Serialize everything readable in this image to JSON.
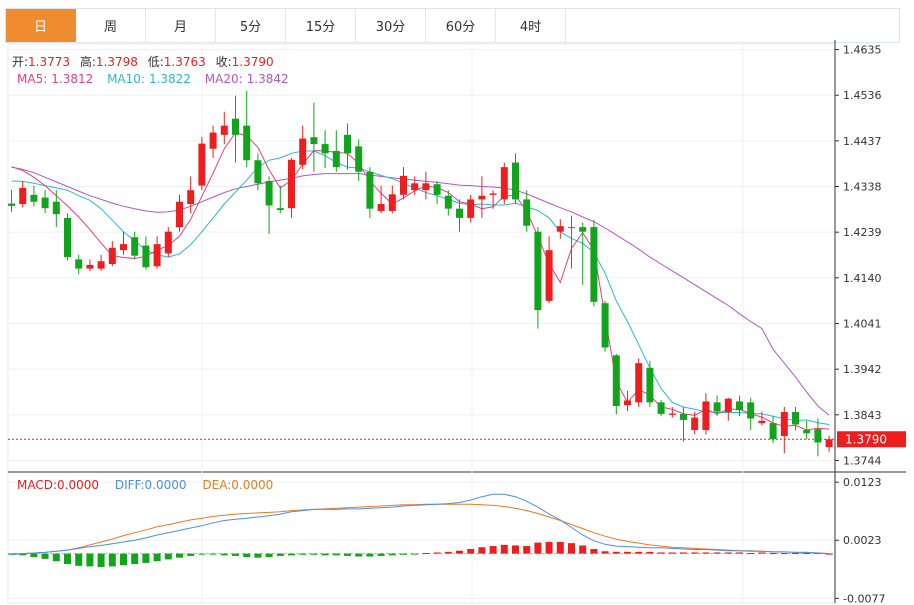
{
  "tabs": [
    "日",
    "周",
    "月",
    "5分",
    "15分",
    "30分",
    "60分",
    "4时"
  ],
  "active_tab": 0,
  "ohlc_bar": {
    "open_label": "开:",
    "open": "1.3773",
    "high_label": "高:",
    "high": "1.3798",
    "low_label": "低:",
    "low": "1.3763",
    "close_label": "收:",
    "close": "1.3790"
  },
  "ma_bar": {
    "ma5_label": "MA5:",
    "ma5": "1.3812",
    "ma10_label": "MA10:",
    "ma10": "1.3822",
    "ma20_label": "MA20:",
    "ma20": "1.3842"
  },
  "macd_bar": {
    "macd_label": "MACD:",
    "macd": "0.0000",
    "diff_label": "DIFF:",
    "diff": "0.0000",
    "dea_label": "DEA:",
    "dea": "0.0000"
  },
  "current_price_tag": "1.3790",
  "colors": {
    "up": "#ee1e1e",
    "down": "#12a51b",
    "ma5": "#e8407a",
    "ma10": "#2bb9d1",
    "ma20": "#b457c5",
    "diff": "#4a90e2",
    "dea": "#ee7a20",
    "tab_active": "#f08c30"
  },
  "chart_data": {
    "type": "candlestick",
    "price_axis_ticks": [
      1.4635,
      1.4536,
      1.4437,
      1.4338,
      1.4239,
      1.414,
      1.4041,
      1.3942,
      1.3843,
      1.3744
    ],
    "price_ylim": [
      1.3719,
      1.4647
    ],
    "macd_axis_ticks": [
      "0.0123",
      "0.0023",
      "-0.0077"
    ],
    "macd_ylim": [
      -0.0085,
      0.0137
    ],
    "candles": [
      [
        1.4301,
        1.4296,
        1.4331,
        1.4283
      ],
      [
        1.43,
        1.4335,
        1.435,
        1.4293
      ],
      [
        1.432,
        1.4305,
        1.434,
        1.4295
      ],
      [
        1.4314,
        1.4291,
        1.433,
        1.428
      ],
      [
        1.4305,
        1.4278,
        1.433,
        1.425
      ],
      [
        1.427,
        1.4185,
        1.428,
        1.4178
      ],
      [
        1.418,
        1.416,
        1.419,
        1.4148
      ],
      [
        1.416,
        1.4168,
        1.418,
        1.4155
      ],
      [
        1.416,
        1.4176,
        1.419,
        1.4155
      ],
      [
        1.417,
        1.4205,
        1.422,
        1.4165
      ],
      [
        1.42,
        1.4213,
        1.424,
        1.419
      ],
      [
        1.4228,
        1.4188,
        1.424,
        1.418
      ],
      [
        1.421,
        1.4163,
        1.423,
        1.4158
      ],
      [
        1.4165,
        1.4213,
        1.423,
        1.416
      ],
      [
        1.4193,
        1.424,
        1.425,
        1.4185
      ],
      [
        1.425,
        1.4305,
        1.432,
        1.424
      ],
      [
        1.43,
        1.433,
        1.436,
        1.428
      ],
      [
        1.434,
        1.4431,
        1.4445,
        1.433
      ],
      [
        1.442,
        1.4455,
        1.447,
        1.44
      ],
      [
        1.445,
        1.447,
        1.45,
        1.443
      ],
      [
        1.4485,
        1.445,
        1.4535,
        1.439
      ],
      [
        1.447,
        1.4395,
        1.4545,
        1.438
      ],
      [
        1.4395,
        1.4345,
        1.441,
        1.433
      ],
      [
        1.435,
        1.4297,
        1.436,
        1.4235
      ],
      [
        1.4291,
        1.4287,
        1.434,
        1.428
      ],
      [
        1.4291,
        1.4396,
        1.44,
        1.427
      ],
      [
        1.4385,
        1.4442,
        1.447,
        1.4375
      ],
      [
        1.4445,
        1.443,
        1.452,
        1.437
      ],
      [
        1.443,
        1.441,
        1.446,
        1.4378
      ],
      [
        1.4415,
        1.438,
        1.446,
        1.437
      ],
      [
        1.445,
        1.441,
        1.4475,
        1.4375
      ],
      [
        1.4425,
        1.437,
        1.444,
        1.435
      ],
      [
        1.437,
        1.429,
        1.438,
        1.427
      ],
      [
        1.4285,
        1.43,
        1.434,
        1.428
      ],
      [
        1.4285,
        1.4321,
        1.434,
        1.428
      ],
      [
        1.432,
        1.4361,
        1.438,
        1.431
      ],
      [
        1.433,
        1.4345,
        1.436,
        1.432
      ],
      [
        1.433,
        1.4345,
        1.437,
        1.431
      ],
      [
        1.4343,
        1.432,
        1.435,
        1.43
      ],
      [
        1.4318,
        1.429,
        1.433,
        1.4275
      ],
      [
        1.429,
        1.427,
        1.431,
        1.424
      ],
      [
        1.427,
        1.431,
        1.432,
        1.426
      ],
      [
        1.431,
        1.4318,
        1.436,
        1.427
      ],
      [
        1.432,
        1.4323,
        1.433,
        1.429
      ],
      [
        1.431,
        1.438,
        1.439,
        1.43
      ],
      [
        1.439,
        1.431,
        1.441,
        1.43
      ],
      [
        1.431,
        1.4253,
        1.433,
        1.424
      ],
      [
        1.424,
        1.407,
        1.425,
        1.403
      ],
      [
        1.409,
        1.42,
        1.423,
        1.4085
      ],
      [
        1.424,
        1.4252,
        1.4267,
        1.4225
      ],
      [
        1.425,
        1.4249,
        1.4275,
        1.416
      ],
      [
        1.425,
        1.424,
        1.426,
        1.4125
      ],
      [
        1.425,
        1.4088,
        1.4265,
        1.4078
      ],
      [
        1.4085,
        1.3989,
        1.409,
        1.398
      ],
      [
        1.3972,
        1.3862,
        1.3975,
        1.3844
      ],
      [
        1.3864,
        1.3874,
        1.3895,
        1.3851
      ],
      [
        1.387,
        1.3955,
        1.3965,
        1.386
      ],
      [
        1.3945,
        1.387,
        1.396,
        1.386
      ],
      [
        1.387,
        1.3845,
        1.3875,
        1.384
      ],
      [
        1.3843,
        1.3846,
        1.386,
        1.3837
      ],
      [
        1.3845,
        1.3832,
        1.386,
        1.3785
      ],
      [
        1.381,
        1.3837,
        1.385,
        1.3801
      ],
      [
        1.381,
        1.3872,
        1.389,
        1.38
      ],
      [
        1.387,
        1.385,
        1.3885,
        1.384
      ],
      [
        1.3849,
        1.3878,
        1.388,
        1.383
      ],
      [
        1.3872,
        1.3853,
        1.3885,
        1.384
      ],
      [
        1.387,
        1.3835,
        1.388,
        1.381
      ],
      [
        1.3825,
        1.383,
        1.385,
        1.382
      ],
      [
        1.3825,
        1.379,
        1.384,
        1.3782
      ],
      [
        1.3797,
        1.3849,
        1.386,
        1.376
      ],
      [
        1.3849,
        1.3822,
        1.386,
        1.3809
      ],
      [
        1.381,
        1.3803,
        1.383,
        1.379
      ],
      [
        1.3812,
        1.3783,
        1.3835,
        1.3753
      ],
      [
        1.3773,
        1.379,
        1.3798,
        1.3763
      ]
    ],
    "ma5": [
      1.4381,
      1.4373,
      1.4358,
      1.434,
      1.4318,
      1.4296,
      1.4272,
      1.4245,
      1.4215,
      1.4188,
      1.4184,
      1.4182,
      1.4187,
      1.42,
      1.421,
      1.423,
      1.4267,
      1.4317,
      1.4367,
      1.442,
      1.4455,
      1.4448,
      1.4423,
      1.4374,
      1.4335,
      1.4352,
      1.4387,
      1.4416,
      1.4415,
      1.4412,
      1.441,
      1.4388,
      1.435,
      1.4323,
      1.43,
      1.4313,
      1.4329,
      1.4339,
      1.4336,
      1.4325,
      1.4305,
      1.43,
      1.429,
      1.4294,
      1.4318,
      1.4318,
      1.4285,
      1.423,
      1.417,
      1.413,
      1.4204,
      1.4238,
      1.42,
      1.4055,
      1.3915,
      1.387,
      1.3898,
      1.3885,
      1.386,
      1.3855,
      1.3845,
      1.3842,
      1.3855,
      1.3845,
      1.3855,
      1.3855,
      1.3845,
      1.3838,
      1.3825,
      1.3818,
      1.382,
      1.381,
      1.3814,
      1.3812
    ],
    "ma10": [
      1.435,
      1.4349,
      1.4345,
      1.434,
      1.4335,
      1.433,
      1.4318,
      1.4308,
      1.429,
      1.4265,
      1.424,
      1.422,
      1.42,
      1.419,
      1.4185,
      1.4192,
      1.4212,
      1.424,
      1.427,
      1.43,
      1.4326,
      1.4352,
      1.438,
      1.4395,
      1.44,
      1.441,
      1.4415,
      1.4415,
      1.4405,
      1.439,
      1.438,
      1.4378,
      1.437,
      1.4362,
      1.4355,
      1.4345,
      1.4335,
      1.4325,
      1.4318,
      1.431,
      1.4302,
      1.4298,
      1.43,
      1.4298,
      1.4298,
      1.4302,
      1.4294,
      1.4286,
      1.427,
      1.424,
      1.4225,
      1.4215,
      1.4195,
      1.415,
      1.409,
      1.4045,
      1.3995,
      1.3945,
      1.39,
      1.387,
      1.386,
      1.3855,
      1.385,
      1.3848,
      1.3848,
      1.3848,
      1.3846,
      1.3845,
      1.384,
      1.3835,
      1.383,
      1.3832,
      1.3826,
      1.3822
    ],
    "ma20": [
      1.438,
      1.4375,
      1.4368,
      1.4358,
      1.4348,
      1.4338,
      1.4328,
      1.4318,
      1.431,
      1.4302,
      1.4295,
      1.429,
      1.4285,
      1.4282,
      1.4283,
      1.4287,
      1.4295,
      1.4305,
      1.4315,
      1.4325,
      1.4333,
      1.4338,
      1.4343,
      1.4348,
      1.4352,
      1.4356,
      1.4361,
      1.4364,
      1.4366,
      1.4366,
      1.4366,
      1.4366,
      1.4363,
      1.436,
      1.4357,
      1.4354,
      1.4352,
      1.4349,
      1.4347,
      1.4344,
      1.4341,
      1.434,
      1.4338,
      1.4337,
      1.4335,
      1.433,
      1.4322,
      1.4312,
      1.4302,
      1.4292,
      1.4283,
      1.4272,
      1.4262,
      1.4248,
      1.4233,
      1.4218,
      1.4202,
      1.4185,
      1.417,
      1.4155,
      1.414,
      1.4125,
      1.411,
      1.4095,
      1.408,
      1.4062,
      1.4045,
      1.403,
      1.3985,
      1.3955,
      1.3925,
      1.3892,
      1.3862,
      1.3842
    ],
    "macd_hist": [
      -0.0001,
      -0.0003,
      -0.0006,
      -0.0009,
      -0.0013,
      -0.0018,
      -0.0021,
      -0.0022,
      -0.0023,
      -0.0022,
      -0.002,
      -0.0018,
      -0.0016,
      -0.0013,
      -0.001,
      -0.0007,
      -0.0004,
      -0.0001,
      -0.0001,
      -0.0003,
      -0.0004,
      -0.0006,
      -0.0007,
      -0.0006,
      -0.0004,
      -0.0003,
      -0.0002,
      -0.0002,
      -0.0003,
      -0.0003,
      -0.0004,
      -0.0005,
      -0.0005,
      -0.0004,
      -0.0003,
      -0.0002,
      -0.0001,
      0.0001,
      0.0002,
      0.0003,
      0.0005,
      0.0008,
      0.0011,
      0.0013,
      0.0015,
      0.0014,
      0.0013,
      0.0019,
      0.002,
      0.002,
      0.0018,
      0.0014,
      0.0008,
      0.0004,
      0.0003,
      0.0003,
      0.0003,
      0.0003,
      0.0002,
      0.0002,
      0.0002,
      0.0002,
      0.0002,
      0.0002,
      0.0002,
      0.0002,
      0.0001,
      0.0002,
      0.0001,
      0.0001,
      0.0001,
      0.0001,
      0.0001,
      0.0
    ],
    "diff": [
      -0.0002,
      0.0,
      0.0001,
      0.0002,
      0.0004,
      0.0006,
      0.0009,
      0.0012,
      0.0014,
      0.0017,
      0.002,
      0.0023,
      0.0027,
      0.0032,
      0.0036,
      0.004,
      0.0044,
      0.0048,
      0.0053,
      0.0057,
      0.0059,
      0.0061,
      0.0063,
      0.0065,
      0.0068,
      0.0072,
      0.0074,
      0.0076,
      0.0076,
      0.0076,
      0.0077,
      0.0077,
      0.0078,
      0.0079,
      0.008,
      0.0082,
      0.0083,
      0.0084,
      0.0085,
      0.0086,
      0.0088,
      0.0092,
      0.0098,
      0.0102,
      0.0102,
      0.0098,
      0.009,
      0.008,
      0.0068,
      0.0058,
      0.0045,
      0.0032,
      0.0022,
      0.0016,
      0.0013,
      0.0012,
      0.0011,
      0.001,
      0.001,
      0.0009,
      0.0008,
      0.0007,
      0.0007,
      0.0006,
      0.0005,
      0.0005,
      0.0004,
      0.0004,
      0.0003,
      0.0003,
      0.0002,
      0.0002,
      0.0001,
      0.0
    ],
    "dea": [
      0.0,
      0.0,
      0.0001,
      0.0002,
      0.0004,
      0.0006,
      0.001,
      0.0015,
      0.002,
      0.0025,
      0.0031,
      0.0036,
      0.0041,
      0.0046,
      0.005,
      0.0054,
      0.0058,
      0.0061,
      0.0064,
      0.0066,
      0.0068,
      0.0069,
      0.007,
      0.0071,
      0.0072,
      0.0074,
      0.0075,
      0.0076,
      0.0077,
      0.0078,
      0.0079,
      0.008,
      0.0081,
      0.0082,
      0.0083,
      0.0084,
      0.0084,
      0.0085,
      0.0085,
      0.0085,
      0.0085,
      0.0085,
      0.0084,
      0.0083,
      0.0081,
      0.0078,
      0.0074,
      0.0069,
      0.0063,
      0.0057,
      0.005,
      0.0043,
      0.0036,
      0.003,
      0.0025,
      0.0021,
      0.0018,
      0.0015,
      0.0013,
      0.0011,
      0.001,
      0.0009,
      0.0008,
      0.0007,
      0.0006,
      0.0005,
      0.0005,
      0.0004,
      0.0003,
      0.0003,
      0.0002,
      0.0002,
      0.0001,
      0.0
    ]
  }
}
